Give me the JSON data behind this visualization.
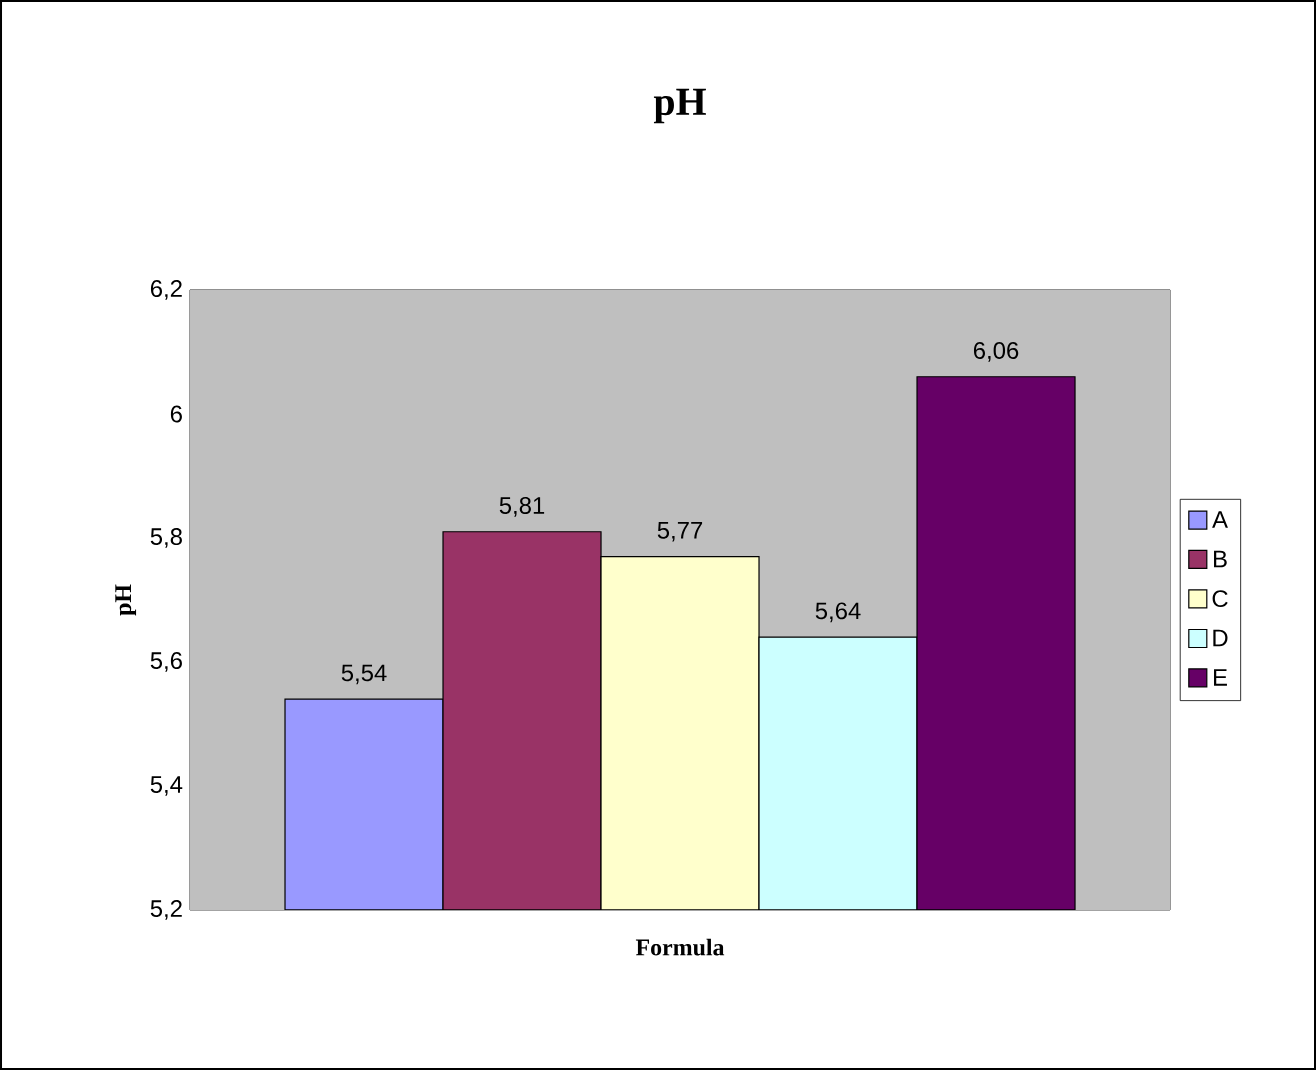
{
  "chart_data": {
    "type": "bar",
    "title": "pH",
    "xlabel": "Formula",
    "ylabel": "pH",
    "categories": [
      null
    ],
    "series": [
      {
        "name": "A",
        "color": "#9999ff",
        "values": [
          5.54
        ],
        "value_labels": [
          "5,54"
        ]
      },
      {
        "name": "B",
        "color": "#993366",
        "values": [
          5.81
        ],
        "value_labels": [
          "5,81"
        ]
      },
      {
        "name": "C",
        "color": "#ffffcc",
        "values": [
          5.77
        ],
        "value_labels": [
          "5,77"
        ]
      },
      {
        "name": "D",
        "color": "#ccffff",
        "values": [
          5.64
        ],
        "value_labels": [
          "5,64"
        ]
      },
      {
        "name": "E",
        "color": "#660066",
        "values": [
          6.06
        ],
        "value_labels": [
          "6,06"
        ]
      }
    ],
    "ylim": [
      5.2,
      6.2
    ],
    "yticks": [
      {
        "value": 5.2,
        "label": "5,2"
      },
      {
        "value": 5.4,
        "label": "5,4"
      },
      {
        "value": 5.6,
        "label": "5,6"
      },
      {
        "value": 5.8,
        "label": "5,8"
      },
      {
        "value": 6,
        "label": "6"
      },
      {
        "value": 6.2,
        "label": "6,2"
      }
    ],
    "grid": false,
    "legend": "right"
  }
}
